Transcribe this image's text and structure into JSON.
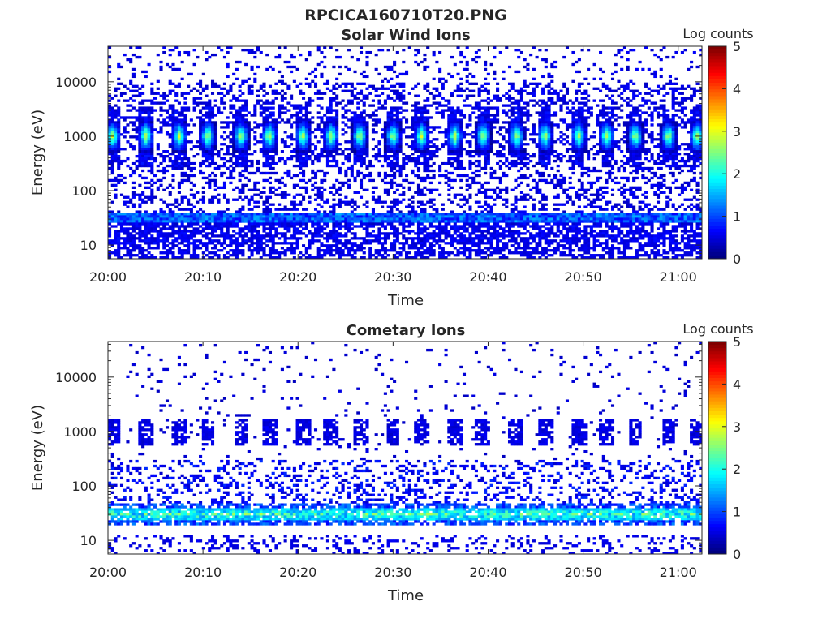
{
  "figure": {
    "title": "RPCICA160710T20.PNG"
  },
  "chart_data": [
    {
      "type": "heatmap",
      "title": "Solar Wind Ions",
      "xlabel": "Time",
      "ylabel": "Energy (eV)",
      "x_ticks": [
        "20:00",
        "20:10",
        "20:20",
        "20:30",
        "20:40",
        "20:50",
        "21:00"
      ],
      "y_ticks": [
        "10",
        "100",
        "1000",
        "10000"
      ],
      "y_scale": "log",
      "ylim": [
        5.6,
        45000
      ],
      "xlim_minutes": [
        0,
        62.5
      ],
      "colorbar": {
        "label": "Log counts",
        "ticks": [
          "0",
          "1",
          "2",
          "3",
          "4",
          "5"
        ],
        "range": [
          0,
          5
        ],
        "colormap": "jet"
      },
      "features": [
        {
          "description": "periodic solar wind proton beam near 1000 eV",
          "energy_eV": 1000,
          "peak_log_counts": 2.8,
          "pulse_times_min": [
            0.5,
            4.0,
            7.5,
            10.5,
            14.0,
            17.0,
            20.5,
            23.5,
            26.5,
            30.0,
            33.0,
            36.5,
            39.5,
            43.0,
            46.0,
            49.5,
            52.5,
            55.5,
            59.0,
            62.0
          ]
        },
        {
          "description": "continuous band near 30 eV",
          "energy_eV": 30,
          "peak_log_counts": 1.6
        }
      ]
    },
    {
      "type": "heatmap",
      "title": "Cometary Ions",
      "xlabel": "Time",
      "ylabel": "Energy (eV)",
      "x_ticks": [
        "20:00",
        "20:10",
        "20:20",
        "20:30",
        "20:40",
        "20:50",
        "21:00"
      ],
      "y_ticks": [
        "10",
        "100",
        "1000",
        "10000"
      ],
      "y_scale": "log",
      "ylim": [
        5.6,
        45000
      ],
      "xlim_minutes": [
        0,
        62.5
      ],
      "colorbar": {
        "label": "Log counts",
        "ticks": [
          "0",
          "1",
          "2",
          "3",
          "4",
          "5"
        ],
        "range": [
          0,
          5
        ],
        "colormap": "jet"
      },
      "features": [
        {
          "description": "intense cometary ion band",
          "energy_eV": 30,
          "peak_log_counts": 2.8
        },
        {
          "description": "weak periodic signal near 1000 eV",
          "energy_eV": 1000,
          "peak_log_counts": 0.4
        }
      ]
    }
  ]
}
